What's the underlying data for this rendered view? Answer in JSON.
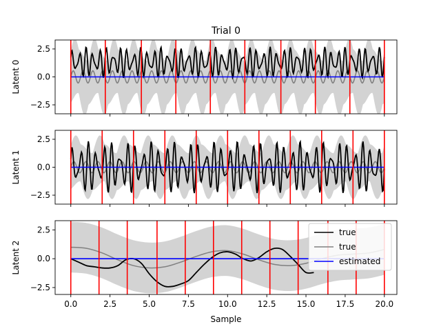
{
  "chart_data": {
    "type": "line",
    "title": "Trial 0",
    "xlabel": "Sample",
    "xlim": [
      -1,
      20.8
    ],
    "xticks": [
      0.0,
      2.5,
      5.0,
      7.5,
      10.0,
      12.5,
      15.0,
      17.5,
      20.0
    ],
    "xtick_labels": [
      "0.0",
      "2.5",
      "5.0",
      "7.5",
      "10.0",
      "12.5",
      "15.0",
      "17.5",
      "20.0"
    ],
    "colors": {
      "true": "#000000",
      "true_alt": "#808080",
      "estimated": "#0000ff",
      "band": "#d3d3d3",
      "vlines": "#ff0000"
    },
    "legend": {
      "placement": "upper-right",
      "panel": 2,
      "entries": [
        {
          "label": "true",
          "color": "#000000"
        },
        {
          "label": "true",
          "color": "#808080"
        },
        {
          "label": "estimated",
          "color": "#0000ff"
        }
      ]
    },
    "panels": [
      {
        "ylabel": "Latent 0",
        "ylim": [
          -3.3,
          3.3
        ],
        "yticks": [
          -2.5,
          0.0,
          2.5
        ],
        "ytick_labels": [
          "−2.5",
          "0.0",
          "2.5"
        ],
        "vlines": [
          0.0,
          2.2,
          4.5,
          6.7,
          8.9,
          11.1,
          13.4,
          15.6,
          17.8,
          20.0
        ],
        "series": [
          {
            "role": "band",
            "type": "fill",
            "mean": 0.0,
            "halfwidth": 2.6,
            "amp": 0.9,
            "freq": 1.6
          },
          {
            "role": "true_alt",
            "type": "osc",
            "base": 0.0,
            "amp": 0.55,
            "freq": 1.6
          },
          {
            "role": "true",
            "type": "osc",
            "base": 1.3,
            "amp": 0.9,
            "freq": 2.3
          },
          {
            "role": "estimated",
            "type": "flat",
            "value": 0.0
          }
        ]
      },
      {
        "ylabel": "Latent 1",
        "ylim": [
          -3.3,
          3.3
        ],
        "yticks": [
          -2.5,
          0.0,
          2.5
        ],
        "ytick_labels": [
          "−2.5",
          "0.0",
          "2.5"
        ],
        "vlines": [
          0.0,
          2.0,
          4.0,
          6.0,
          8.0,
          10.0,
          12.0,
          14.0,
          16.0,
          18.0,
          20.0
        ],
        "series": [
          {
            "role": "band",
            "type": "fill",
            "mean": 0.0,
            "halfwidth": 2.2,
            "amp": 0.7,
            "freq": 1.3
          },
          {
            "role": "true_alt",
            "type": "osc",
            "base": 0.0,
            "amp": 0.5,
            "freq": 1.3
          },
          {
            "role": "true",
            "type": "osc",
            "base": 0.0,
            "amp": 1.5,
            "freq": 2.0
          },
          {
            "role": "estimated",
            "type": "flat",
            "value": 0.0
          }
        ]
      },
      {
        "ylabel": "Latent 2",
        "ylim": [
          -3.1,
          3.3
        ],
        "yticks": [
          -2.5,
          0.0,
          2.5
        ],
        "ytick_labels": [
          "−2.5",
          "0.0",
          "2.5"
        ],
        "vlines": [
          0.0,
          1.8,
          3.6,
          5.5,
          7.3,
          9.1,
          10.9,
          12.7,
          14.5,
          16.4,
          18.2,
          20.0
        ],
        "series": [
          {
            "role": "band",
            "type": "fill_smooth",
            "halfwidth": 2.2
          },
          {
            "role": "true_alt",
            "type": "points",
            "x": [
              0,
              1,
              2,
              3,
              4,
              5,
              6,
              7,
              8,
              9,
              10,
              11,
              12,
              13,
              14,
              15,
              16,
              17,
              18,
              19,
              20
            ],
            "y": [
              1.0,
              0.9,
              0.5,
              -0.1,
              -0.6,
              -0.8,
              -0.7,
              -0.3,
              0.2,
              0.6,
              0.7,
              0.4,
              -0.1,
              -0.5,
              -0.6,
              -0.4,
              0.0,
              0.3,
              0.4,
              0.5,
              0.8
            ]
          },
          {
            "role": "true",
            "type": "points",
            "x": [
              0,
              0.5,
              1,
              1.5,
              2,
              2.5,
              3,
              3.5,
              4,
              4.5,
              5,
              5.5,
              6,
              6.5,
              7,
              7.5,
              8,
              8.5,
              9,
              9.5,
              10,
              10.5,
              11,
              11.5,
              12,
              12.5,
              13,
              13.5,
              14,
              14.5,
              15,
              15.5
            ],
            "y": [
              0.0,
              -0.3,
              -0.6,
              -0.7,
              -0.8,
              -0.8,
              -0.6,
              -0.1,
              0.0,
              -0.4,
              -1.3,
              -2.0,
              -2.4,
              -2.4,
              -2.2,
              -1.9,
              -1.2,
              -0.5,
              0.1,
              0.5,
              0.6,
              0.4,
              0.0,
              -0.2,
              0.1,
              0.6,
              0.9,
              0.8,
              0.2,
              -0.5,
              -1.2,
              -1.2
            ]
          },
          {
            "role": "estimated",
            "type": "flat",
            "value": 0.0
          }
        ]
      }
    ]
  }
}
